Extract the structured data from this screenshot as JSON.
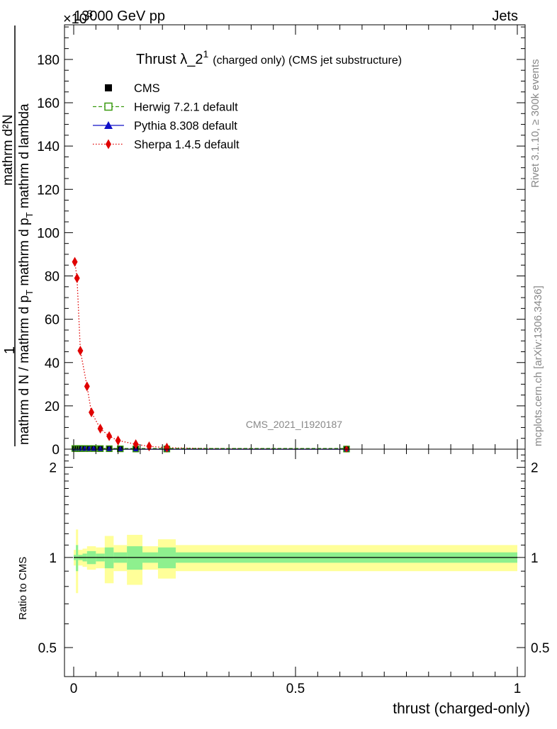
{
  "header": {
    "left": "13000 GeV pp",
    "right": "Jets",
    "multiplier": "×10",
    "multiplier_exp": "3"
  },
  "side_labels": {
    "rivet": "Rivet 3.1.10, ≥ 300k events",
    "mcplots": "mcplots.cern.ch [arXiv:1306.3436]"
  },
  "watermark": "CMS_2021_I1920187",
  "chart_data": [
    {
      "panel": "main",
      "type": "line",
      "title": "Thrust λ_2",
      "title_sup": "1",
      "subtitle": "(charged only) (CMS jet substructure)",
      "ylabel_numerator": "1",
      "ylabel_denominator": "mathrm d N / mathrm d p_T mathrm d p_T mathrm d lambda",
      "ylabel_fraction_top": "mathrm d²N",
      "ylabel_line1": "mathrm d N / mathrm d p",
      "ylabel_line1_sub": "T",
      "ylabel_line2": " mathrm d p",
      "ylabel_line2_sub": "T",
      "ylabel_line3": " mathrm d lambda",
      "xlim": [
        0,
        1
      ],
      "ylim": [
        0,
        196
      ],
      "y_unit_multiplier": 1000,
      "yticks": [
        0,
        20,
        40,
        60,
        80,
        100,
        120,
        140,
        160,
        180
      ],
      "legend": [
        {
          "name": "CMS",
          "color": "#000000",
          "marker": "square",
          "line": "none"
        },
        {
          "name": "Herwig 7.2.1 default",
          "color": "#3a9a10",
          "marker": "open-square",
          "line": "dashed"
        },
        {
          "name": "Pythia 8.308 default",
          "color": "#1010c8",
          "marker": "triangle",
          "line": "solid"
        },
        {
          "name": "Sherpa 1.4.5 default",
          "color": "#e00000",
          "marker": "diamond",
          "line": "dotted"
        }
      ],
      "series": [
        {
          "name": "Sherpa 1.4.5 default",
          "x": [
            0.0025,
            0.0075,
            0.015,
            0.03,
            0.04,
            0.06,
            0.08,
            0.1,
            0.14,
            0.17,
            0.21,
            0.3,
            0.5,
            0.62
          ],
          "values": [
            86.5,
            79,
            45.5,
            29,
            17,
            9.5,
            6,
            4,
            2.3,
            1.3,
            0.7,
            0.3,
            0.1,
            0.05
          ]
        },
        {
          "name": "CMS",
          "x": [
            0.0025,
            0.0075,
            0.0125,
            0.0175,
            0.025,
            0.035,
            0.045,
            0.06,
            0.08,
            0.105,
            0.14,
            0.21,
            0.615
          ],
          "values": [
            0.3,
            0.3,
            0.3,
            0.3,
            0.3,
            0.3,
            0.3,
            0.25,
            0.2,
            0.15,
            0.1,
            0.08,
            0.05
          ]
        }
      ]
    },
    {
      "panel": "ratio",
      "type": "area",
      "ylabel": "Ratio to CMS",
      "xlabel": "thrust (charged-only)",
      "xlim": [
        0,
        1
      ],
      "ylim": [
        0.4,
        2.3
      ],
      "scale": "log",
      "yticks": [
        0.5,
        1,
        2
      ],
      "ytick_labels": [
        "0.5",
        "1",
        "2"
      ],
      "xticks": [
        0,
        0.5,
        1
      ],
      "xtick_labels": [
        "0",
        "0.5",
        "1"
      ],
      "bins": [
        {
          "x0": 0.0,
          "x1": 0.005,
          "stat": 0.02,
          "tot": 0.06
        },
        {
          "x0": 0.005,
          "x1": 0.01,
          "stat": 0.1,
          "tot": 0.24
        },
        {
          "x0": 0.01,
          "x1": 0.02,
          "stat": 0.02,
          "tot": 0.06
        },
        {
          "x0": 0.02,
          "x1": 0.03,
          "stat": 0.03,
          "tot": 0.07
        },
        {
          "x0": 0.03,
          "x1": 0.05,
          "stat": 0.05,
          "tot": 0.09
        },
        {
          "x0": 0.05,
          "x1": 0.07,
          "stat": 0.03,
          "tot": 0.08
        },
        {
          "x0": 0.07,
          "x1": 0.09,
          "stat": 0.08,
          "tot": 0.18
        },
        {
          "x0": 0.09,
          "x1": 0.12,
          "stat": 0.04,
          "tot": 0.1
        },
        {
          "x0": 0.12,
          "x1": 0.155,
          "stat": 0.09,
          "tot": 0.19
        },
        {
          "x0": 0.155,
          "x1": 0.19,
          "stat": 0.04,
          "tot": 0.09
        },
        {
          "x0": 0.19,
          "x1": 0.23,
          "stat": 0.08,
          "tot": 0.15
        },
        {
          "x0": 0.23,
          "x1": 1.0,
          "stat": 0.04,
          "tot": 0.1
        }
      ]
    }
  ]
}
